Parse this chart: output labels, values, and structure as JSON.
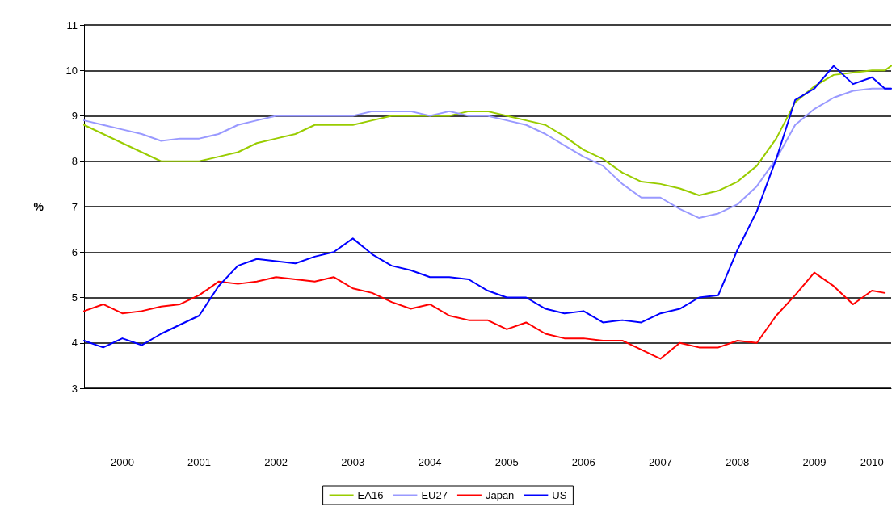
{
  "chart_data": {
    "type": "line",
    "ylabel": "%",
    "ylim": [
      3,
      11
    ],
    "yticks": [
      3,
      4,
      5,
      6,
      7,
      8,
      9,
      10,
      11
    ],
    "xlim": [
      "2000-01",
      "2010-07"
    ],
    "xticks": [
      {
        "value": "2000-07",
        "label": "2000"
      },
      {
        "value": "2001-07",
        "label": "2001"
      },
      {
        "value": "2002-07",
        "label": "2002"
      },
      {
        "value": "2003-07",
        "label": "2003"
      },
      {
        "value": "2004-07",
        "label": "2004"
      },
      {
        "value": "2005-07",
        "label": "2005"
      },
      {
        "value": "2006-07",
        "label": "2006"
      },
      {
        "value": "2007-07",
        "label": "2007"
      },
      {
        "value": "2008-07",
        "label": "2008"
      },
      {
        "value": "2009-07",
        "label": "2009"
      },
      {
        "value": "2010-04",
        "label": "2010"
      }
    ],
    "grid": "y",
    "legend": "bottom",
    "marker": "none",
    "line_style": "solid",
    "series": [
      {
        "name": "EA16",
        "color": "#99cc00",
        "x": [
          "2000-01",
          "2000-04",
          "2000-07",
          "2000-10",
          "2001-01",
          "2001-04",
          "2001-07",
          "2001-10",
          "2002-01",
          "2002-04",
          "2002-07",
          "2002-10",
          "2003-01",
          "2003-04",
          "2003-07",
          "2003-10",
          "2004-01",
          "2004-04",
          "2004-07",
          "2004-10",
          "2005-01",
          "2005-04",
          "2005-07",
          "2005-10",
          "2006-01",
          "2006-04",
          "2006-07",
          "2006-10",
          "2007-01",
          "2007-04",
          "2007-07",
          "2007-10",
          "2008-01",
          "2008-04",
          "2008-07",
          "2008-10",
          "2009-01",
          "2009-04",
          "2009-07",
          "2009-10",
          "2010-01",
          "2010-04",
          "2010-06",
          "2010-07"
        ],
        "values": [
          8.8,
          8.6,
          8.4,
          8.2,
          8.0,
          8.0,
          8.0,
          8.1,
          8.2,
          8.4,
          8.5,
          8.6,
          8.8,
          8.8,
          8.8,
          8.9,
          9.0,
          9.0,
          9.0,
          9.0,
          9.1,
          9.1,
          9.0,
          8.9,
          8.8,
          8.55,
          8.25,
          8.05,
          7.75,
          7.55,
          7.5,
          7.4,
          7.25,
          7.35,
          7.55,
          7.9,
          8.5,
          9.3,
          9.65,
          9.9,
          9.95,
          10.0,
          10.0,
          10.1
        ]
      },
      {
        "name": "EU27",
        "color": "#9999ff",
        "x": [
          "2000-01",
          "2000-04",
          "2000-07",
          "2000-10",
          "2001-01",
          "2001-04",
          "2001-07",
          "2001-10",
          "2002-01",
          "2002-04",
          "2002-07",
          "2002-10",
          "2003-01",
          "2003-04",
          "2003-07",
          "2003-10",
          "2004-01",
          "2004-04",
          "2004-07",
          "2004-10",
          "2005-01",
          "2005-04",
          "2005-07",
          "2005-10",
          "2006-01",
          "2006-04",
          "2006-07",
          "2006-10",
          "2007-01",
          "2007-04",
          "2007-07",
          "2007-10",
          "2008-01",
          "2008-04",
          "2008-07",
          "2008-10",
          "2009-01",
          "2009-04",
          "2009-07",
          "2009-10",
          "2010-01",
          "2010-04",
          "2010-07"
        ],
        "values": [
          8.9,
          8.8,
          8.7,
          8.6,
          8.45,
          8.5,
          8.5,
          8.6,
          8.8,
          8.9,
          9.0,
          9.0,
          9.0,
          9.0,
          9.0,
          9.1,
          9.1,
          9.1,
          9.0,
          9.1,
          9.0,
          9.0,
          8.9,
          8.8,
          8.6,
          8.35,
          8.1,
          7.9,
          7.5,
          7.2,
          7.2,
          6.95,
          6.75,
          6.85,
          7.05,
          7.45,
          8.05,
          8.8,
          9.15,
          9.4,
          9.55,
          9.6,
          9.6
        ]
      },
      {
        "name": "Japan",
        "color": "#ff0000",
        "x": [
          "2000-01",
          "2000-04",
          "2000-07",
          "2000-10",
          "2001-01",
          "2001-04",
          "2001-07",
          "2001-10",
          "2002-01",
          "2002-04",
          "2002-07",
          "2002-10",
          "2003-01",
          "2003-04",
          "2003-07",
          "2003-10",
          "2004-01",
          "2004-04",
          "2004-07",
          "2004-10",
          "2005-01",
          "2005-04",
          "2005-07",
          "2005-10",
          "2006-01",
          "2006-04",
          "2006-07",
          "2006-10",
          "2007-01",
          "2007-04",
          "2007-07",
          "2007-10",
          "2008-01",
          "2008-04",
          "2008-07",
          "2008-10",
          "2009-01",
          "2009-04",
          "2009-07",
          "2009-10",
          "2010-01",
          "2010-04",
          "2010-06"
        ],
        "values": [
          4.7,
          4.85,
          4.65,
          4.7,
          4.8,
          4.85,
          5.05,
          5.35,
          5.3,
          5.35,
          5.45,
          5.4,
          5.35,
          5.45,
          5.2,
          5.1,
          4.9,
          4.75,
          4.85,
          4.6,
          4.5,
          4.5,
          4.3,
          4.45,
          4.2,
          4.1,
          4.1,
          4.05,
          4.05,
          3.85,
          3.65,
          4.0,
          3.9,
          3.9,
          4.05,
          4.0,
          4.6,
          5.05,
          5.55,
          5.25,
          4.85,
          5.15,
          5.1
        ]
      },
      {
        "name": "US",
        "color": "#0000ff",
        "x": [
          "2000-01",
          "2000-04",
          "2000-07",
          "2000-10",
          "2001-01",
          "2001-04",
          "2001-07",
          "2001-10",
          "2002-01",
          "2002-04",
          "2002-07",
          "2002-10",
          "2003-01",
          "2003-04",
          "2003-07",
          "2003-10",
          "2004-01",
          "2004-04",
          "2004-07",
          "2004-10",
          "2005-01",
          "2005-04",
          "2005-07",
          "2005-10",
          "2006-01",
          "2006-04",
          "2006-07",
          "2006-10",
          "2007-01",
          "2007-04",
          "2007-07",
          "2007-10",
          "2008-01",
          "2008-04",
          "2008-07",
          "2008-10",
          "2009-01",
          "2009-04",
          "2009-07",
          "2009-10",
          "2010-01",
          "2010-04",
          "2010-06",
          "2010-07"
        ],
        "values": [
          4.05,
          3.9,
          4.1,
          3.95,
          4.2,
          4.4,
          4.6,
          5.25,
          5.7,
          5.85,
          5.8,
          5.75,
          5.9,
          6.0,
          6.3,
          5.95,
          5.7,
          5.6,
          5.45,
          5.45,
          5.4,
          5.15,
          5.0,
          5.0,
          4.75,
          4.65,
          4.7,
          4.45,
          4.5,
          4.45,
          4.65,
          4.75,
          5.0,
          5.05,
          6.05,
          6.9,
          8.05,
          9.35,
          9.6,
          10.1,
          9.7,
          9.85,
          9.6,
          9.6
        ]
      }
    ]
  }
}
